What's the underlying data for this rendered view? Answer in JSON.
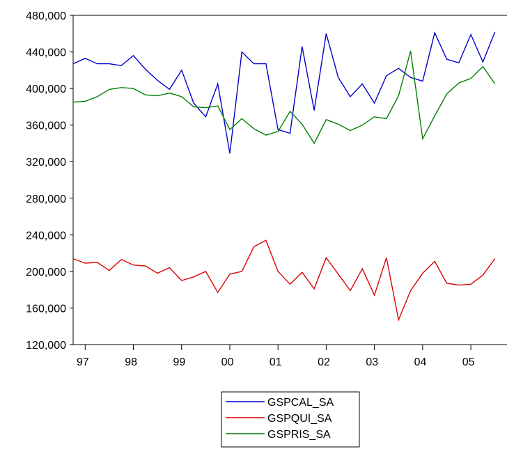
{
  "chart_data": {
    "type": "line",
    "x_labels": [
      "97",
      "98",
      "99",
      "00",
      "01",
      "02",
      "03",
      "04",
      "05"
    ],
    "y_tick_labels": [
      "480,000",
      "440,000",
      "400,000",
      "360,000",
      "320,000",
      "280,000",
      "240,000",
      "200,000",
      "160,000",
      "120,000"
    ],
    "y_ticks": [
      480000,
      440000,
      400000,
      360000,
      320000,
      280000,
      240000,
      200000,
      160000,
      120000
    ],
    "ylim": [
      120000,
      480000
    ],
    "x_start": 1996.75,
    "x_step": 0.25,
    "grid": false,
    "legend_position": "bottom-center",
    "series": [
      {
        "name": "GSPCAL_SA",
        "color": "#0000cc",
        "values": [
          427000,
          433000,
          427000,
          427000,
          425000,
          436000,
          421000,
          409000,
          399000,
          420000,
          384000,
          369000,
          405000,
          329000,
          440000,
          427000,
          427000,
          355000,
          351000,
          446000,
          376000,
          460000,
          412000,
          391000,
          405000,
          384000,
          414000,
          422000,
          412000,
          408000,
          461000,
          432000,
          428000,
          459000,
          429000,
          462000
        ]
      },
      {
        "name": "GSPQUI_SA",
        "color": "#dd0000",
        "values": [
          214000,
          209000,
          210000,
          201000,
          213000,
          207000,
          206000,
          198000,
          204000,
          190000,
          194000,
          200000,
          177000,
          197000,
          200000,
          227000,
          234000,
          200000,
          186000,
          199000,
          181000,
          215000,
          197000,
          179000,
          203000,
          174000,
          215000,
          147000,
          179000,
          198000,
          211000,
          187000,
          185000,
          186000,
          196000,
          214000
        ]
      },
      {
        "name": "GSPRIS_SA",
        "color": "#007f00",
        "values": [
          385000,
          386000,
          391000,
          399000,
          401000,
          400000,
          393000,
          392000,
          395000,
          391000,
          380000,
          379000,
          381000,
          355000,
          367000,
          356000,
          349000,
          353000,
          375000,
          361000,
          340000,
          366000,
          361000,
          354000,
          360000,
          369000,
          367000,
          392000,
          441000,
          345000,
          370000,
          394000,
          406000,
          411000,
          424000,
          405000
        ]
      }
    ]
  }
}
